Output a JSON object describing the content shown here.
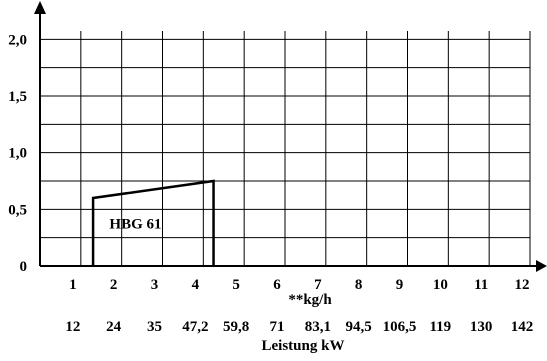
{
  "chart_data": {
    "type": "line",
    "x": [
      1,
      2,
      3,
      4,
      5,
      6,
      7,
      8,
      9,
      10,
      11,
      12
    ],
    "xlabel": "**kg/h",
    "x_tick_labels": [
      "1",
      "2",
      "3",
      "4",
      "5",
      "6",
      "7",
      "8",
      "9",
      "10",
      "11",
      "12"
    ],
    "secondary_x_tick_labels": [
      "12",
      "24",
      "35",
      "47,2",
      "59,8",
      "71",
      "83,1",
      "94,5",
      "106,5",
      "119",
      "130",
      "142"
    ],
    "secondary_xlabel": "Leistung kW",
    "ylabel": "",
    "y_ticks": [
      0,
      0.5,
      1.0,
      1.5,
      2.0
    ],
    "y_tick_labels": [
      "0",
      "0,5",
      "1,0",
      "1,5",
      "2,0"
    ],
    "xlim": [
      0,
      12
    ],
    "ylim": [
      0,
      2.25
    ],
    "grid": true,
    "series": [
      {
        "name": "HBG 61",
        "points": [
          {
            "x": 1.3,
            "y": 0
          },
          {
            "x": 1.3,
            "y": 0.6
          },
          {
            "x": 4.25,
            "y": 0.75
          },
          {
            "x": 4.25,
            "y": 0
          }
        ]
      }
    ],
    "annotations": [
      {
        "text": "HBG 61",
        "x": 1.7,
        "y": 0.33
      }
    ]
  }
}
